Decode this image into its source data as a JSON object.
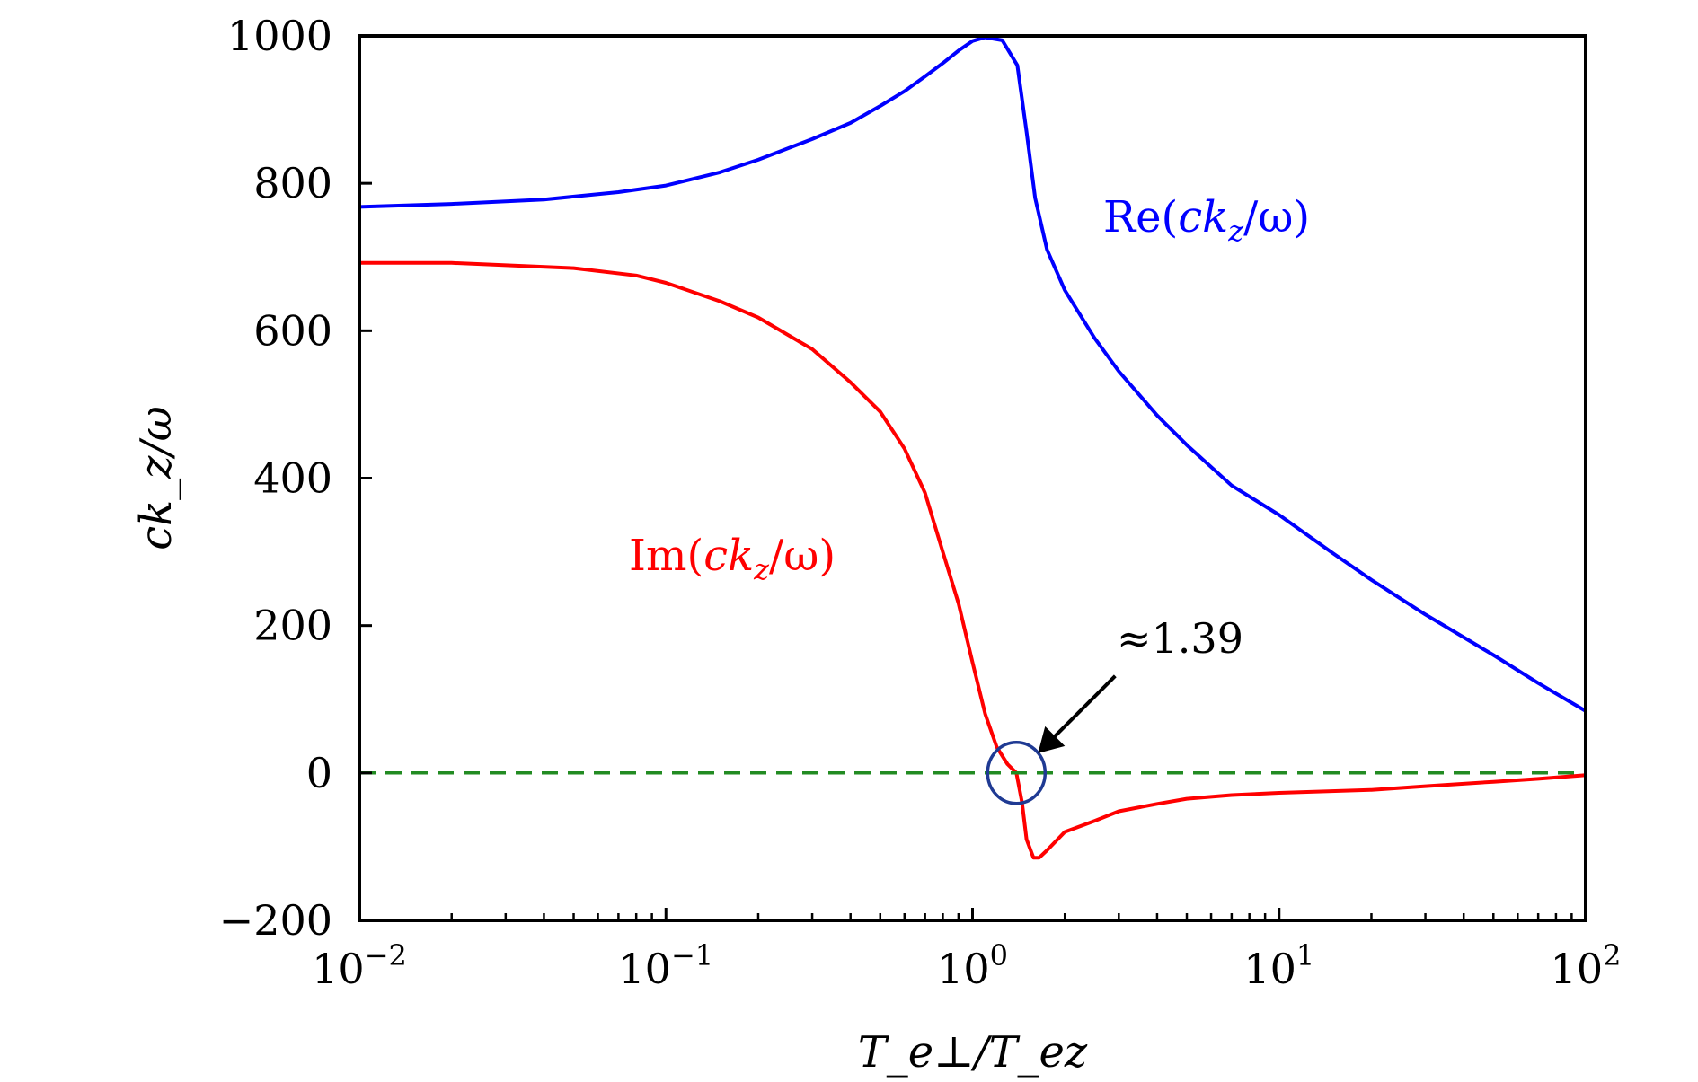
{
  "chart_data": {
    "type": "line",
    "title": "",
    "xlabel": "T_e⊥/T_ez",
    "ylabel": "ck_z/ω",
    "xscale": "log",
    "xlim": [
      0.01,
      100
    ],
    "ylim": [
      -200,
      1000
    ],
    "grid": false,
    "x_ticks": [
      0.01,
      0.1,
      1,
      10,
      100
    ],
    "x_tick_labels": [
      {
        "base": "10",
        "exp": "−2"
      },
      {
        "base": "10",
        "exp": "−1"
      },
      {
        "base": "10",
        "exp": "0"
      },
      {
        "base": "10",
        "exp": "1"
      },
      {
        "base": "10",
        "exp": "2"
      }
    ],
    "y_ticks": [
      -200,
      0,
      200,
      400,
      600,
      800,
      1000
    ],
    "y_tick_labels": [
      "−200",
      "0",
      "200",
      "400",
      "600",
      "800",
      "1000"
    ],
    "colors": {
      "re": "#0000ff",
      "im": "#ff0000",
      "zero": "#228b22",
      "circle": "#1f3a93",
      "axis": "#000000"
    },
    "series": [
      {
        "name": "Re(ck_z/ω)",
        "label": {
          "prefix": "Re(",
          "var_main": "ck",
          "var_sub": "z",
          "suffix": "/ω)"
        },
        "color": "#0000ff",
        "x": [
          0.01,
          0.02,
          0.04,
          0.07,
          0.1,
          0.15,
          0.2,
          0.3,
          0.4,
          0.5,
          0.6,
          0.7,
          0.8,
          0.9,
          1.0,
          1.1,
          1.25,
          1.4,
          1.5,
          1.6,
          1.75,
          2.0,
          2.5,
          3,
          4,
          5,
          7,
          10,
          15,
          20,
          30,
          50,
          70,
          100
        ],
        "y": [
          768,
          772,
          778,
          788,
          797,
          815,
          832,
          860,
          882,
          905,
          925,
          945,
          963,
          980,
          993,
          998,
          994,
          960,
          870,
          780,
          710,
          655,
          590,
          545,
          485,
          445,
          390,
          350,
          298,
          262,
          215,
          160,
          122,
          84
        ]
      },
      {
        "name": "Im(ck_z/ω)",
        "label": {
          "prefix": "Im(",
          "var_main": "ck",
          "var_sub": "z",
          "suffix": "/ω)"
        },
        "color": "#ff0000",
        "x": [
          0.01,
          0.02,
          0.05,
          0.08,
          0.1,
          0.15,
          0.2,
          0.3,
          0.4,
          0.5,
          0.6,
          0.7,
          0.8,
          0.9,
          1.0,
          1.1,
          1.2,
          1.3,
          1.39,
          1.45,
          1.5,
          1.58,
          1.65,
          1.75,
          2,
          2.5,
          3,
          4,
          5,
          7,
          10,
          20,
          30,
          50,
          70,
          100
        ],
        "y": [
          692,
          692,
          685,
          675,
          665,
          640,
          618,
          575,
          530,
          490,
          440,
          380,
          300,
          230,
          150,
          80,
          35,
          12,
          0,
          -40,
          -90,
          -115,
          -115,
          -105,
          -80,
          -65,
          -52,
          -42,
          -35,
          -30,
          -27,
          -23,
          -18,
          -12,
          -8,
          -3
        ]
      },
      {
        "name": "zero",
        "color": "#228b22",
        "style": "dashed",
        "x": [
          0.01,
          100
        ],
        "y": [
          0,
          0
        ]
      }
    ],
    "annotations": [
      {
        "text": "≈1.39",
        "x": 1.39,
        "y": 0,
        "arrow": true,
        "circle": true
      }
    ]
  }
}
